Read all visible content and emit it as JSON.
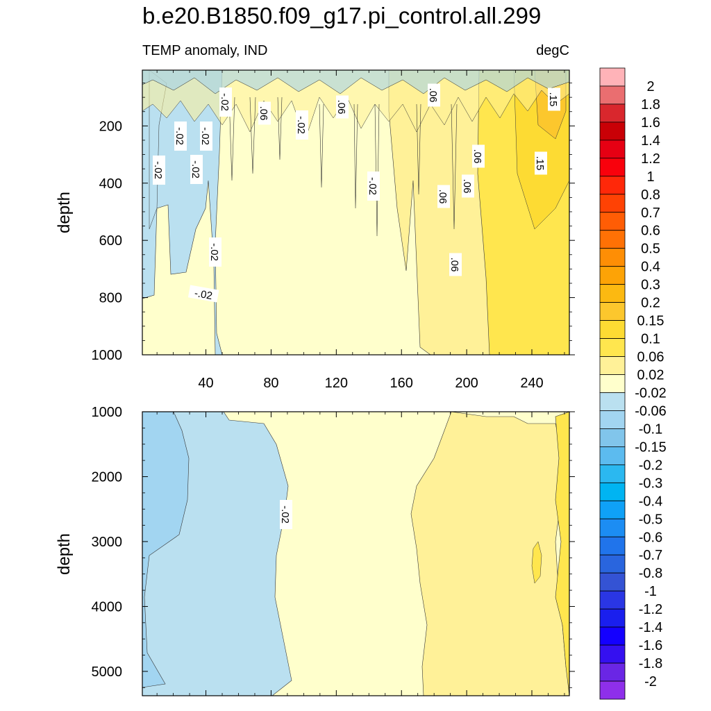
{
  "chart_data": [
    {
      "type": "contour",
      "panel": "upper",
      "title": "b.e20.B1850.f09_g17.pi_control.all.299",
      "subtitle_left": "TEMP anomaly, IND",
      "subtitle_right": "degC",
      "xlabel": "",
      "ylabel": "depth",
      "xlim": [
        1,
        263
      ],
      "ylim": [
        1000,
        5
      ],
      "xticks": [
        "40",
        "80",
        "120",
        "160",
        "200",
        "240"
      ],
      "yticks": [
        "200",
        "400",
        "600",
        "800",
        "1000"
      ],
      "contour_labels": [
        "-.02",
        "-.02",
        "-.02",
        "-.02",
        "-.02",
        "-.02",
        "-.02",
        "-.02",
        "-.02",
        ".06",
        ".06",
        ".06",
        ".06",
        ".06",
        ".06",
        ".06",
        ".15",
        ".15"
      ],
      "regions": [
        {
          "x": [
            1,
            45
          ],
          "value": -0.04
        },
        {
          "x": [
            45,
            160
          ],
          "value": 0.0
        },
        {
          "x": [
            160,
            215
          ],
          "value": 0.04
        },
        {
          "x": [
            215,
            263
          ],
          "value": 0.08
        }
      ]
    },
    {
      "type": "contour",
      "panel": "lower",
      "xlabel": "",
      "ylabel": "depth",
      "xlim": [
        1,
        263
      ],
      "ylim": [
        5375,
        1000
      ],
      "yticks": [
        "1000",
        "2000",
        "3000",
        "4000",
        "5000"
      ],
      "contour_labels": [
        "-.02"
      ],
      "regions": [
        {
          "x": [
            1,
            30
          ],
          "value": -0.08
        },
        {
          "x": [
            30,
            90
          ],
          "value": -0.04
        },
        {
          "x": [
            90,
            175
          ],
          "value": 0.0
        },
        {
          "x": [
            175,
            255
          ],
          "value": 0.04
        },
        {
          "x": [
            255,
            263
          ],
          "value": 0.08
        }
      ]
    }
  ],
  "colorbar": {
    "levels": [
      "2",
      "1.8",
      "1.6",
      "1.4",
      "1.2",
      "1",
      "0.8",
      "0.7",
      "0.6",
      "0.5",
      "0.4",
      "0.3",
      "0.2",
      "0.15",
      "0.1",
      "0.06",
      "0.02",
      "-0.02",
      "-0.06",
      "-0.1",
      "-0.15",
      "-0.2",
      "-0.3",
      "-0.4",
      "-0.5",
      "-0.6",
      "-0.7",
      "-0.8",
      "-1",
      "-1.2",
      "-1.4",
      "-1.6",
      "-1.8",
      "-2"
    ],
    "colors": [
      "#FFB3B8",
      "#EA6E70",
      "#D9272D",
      "#C90006",
      "#E60013",
      "#F9010C",
      "#FF2809",
      "#FF4204",
      "#FF5D05",
      "#FF7105",
      "#FE8E05",
      "#FDA306",
      "#FCB911",
      "#FCC72D",
      "#FDDB33",
      "#FFE64E",
      "#FFF198",
      "#FFFFCC",
      "#BAE0F0",
      "#A2D5F1",
      "#81C5EB",
      "#5CBBEF",
      "#2BB8F0",
      "#00B4F2",
      "#0FA1F7",
      "#1C8DF3",
      "#2074EB",
      "#2965DE",
      "#3453D4",
      "#2A36E4",
      "#1A1FEE",
      "#1400FF",
      "#3510F0",
      "#6A26E5",
      "#8E2FEA"
    ]
  }
}
